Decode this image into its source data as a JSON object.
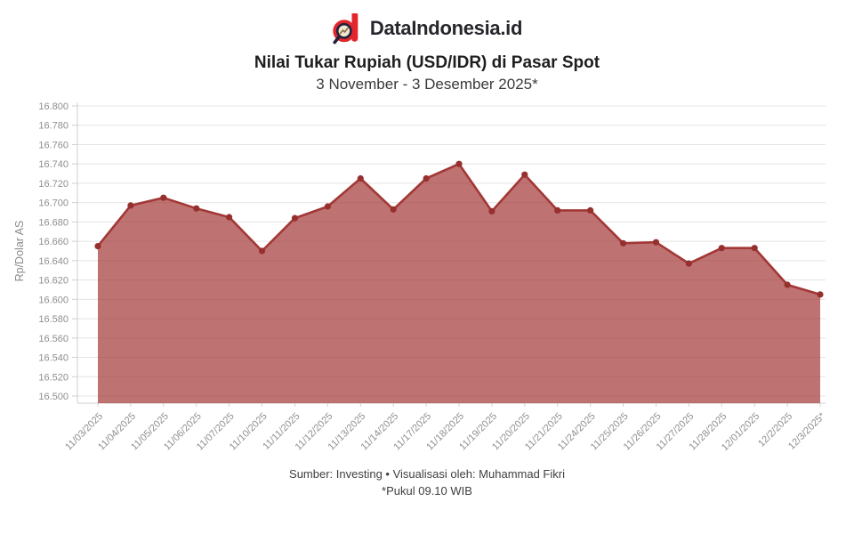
{
  "header": {
    "brand": "DataIndonesia.id"
  },
  "chart_data": {
    "type": "area",
    "title": "Nilai Tukar Rupiah (USD/IDR) di Pasar Spot",
    "subtitle": "3 November - 3 Desember 2025*",
    "ylabel": "Rp/Dolar AS",
    "xlabel": "",
    "categories": [
      "11/03/2025",
      "11/04/2025",
      "11/05/2025",
      "11/06/2025",
      "11/07/2025",
      "11/10/2025",
      "11/11/2025",
      "11/12/2025",
      "11/13/2025",
      "11/14/2025",
      "11/17/2025",
      "11/18/2025",
      "11/19/2025",
      "11/20/2025",
      "11/21/2025",
      "11/24/2025",
      "11/25/2025",
      "11/26/2025",
      "11/27/2025",
      "11/28/2025",
      "12/01/2025",
      "12/2/2025",
      "12/3/2025*"
    ],
    "values": [
      16655,
      16697,
      16705,
      16694,
      16685,
      16650,
      16684,
      16696,
      16725,
      16693,
      16725,
      16740,
      16691,
      16729,
      16692,
      16692,
      16658,
      16659,
      16637,
      16653,
      16653,
      16615,
      16605
    ],
    "ylim": [
      16500,
      16800
    ],
    "ytick_step": 20,
    "grid": true,
    "legend": false,
    "colors": {
      "line": "#a23836",
      "fill": "rgba(163,56,54,0.70)",
      "dot": "#96302e",
      "grid_line": "#e4e4e4",
      "axis_line": "#cfcfcf",
      "tick_label": "#8f8f8f",
      "axis_title": "#8a8a8a",
      "brand_red": "#e2262c",
      "brand_dark": "#23233a"
    }
  },
  "footer": {
    "source": "Sumber: Investing • Visualisasi oleh: Muhammad Fikri",
    "note": "*Pukul 09.10 WIB"
  }
}
